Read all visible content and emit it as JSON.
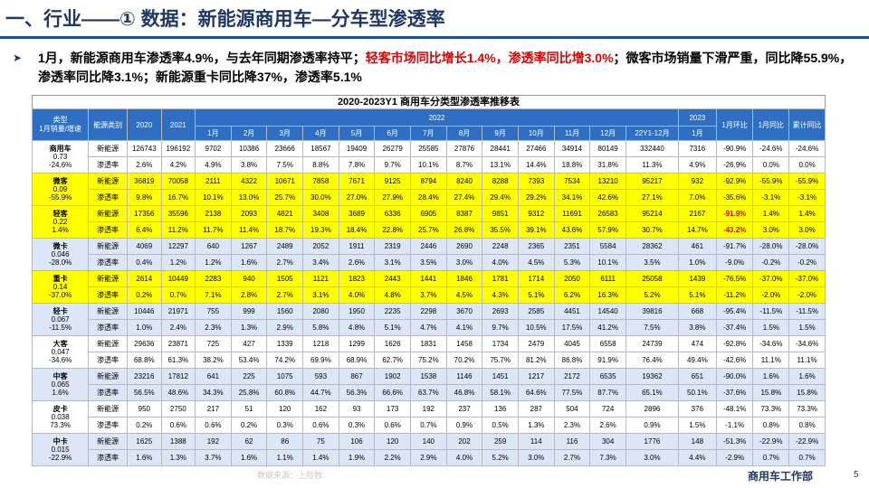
{
  "header": {
    "title": "一、行业——① 数据：新能源商用车—分车型渗透率"
  },
  "bullet": {
    "p1": "1月，新能源商用车渗透率4.9%，与去年同期渗透率持平；",
    "p2": "轻客市场同比增长1.4%，渗透率同比增3.0%",
    "p3": "；微客市场销量下滑严重，同比降55.9%，渗透率同比降3.1%；新能源重卡同比降37%，渗透率5.1%"
  },
  "table": {
    "title": "2020-2023Y1 商用车分类型渗透率推移表",
    "headers": {
      "type": "类型\n1月销量/增速",
      "energy": "能源类别",
      "y2020": "2020",
      "y2021": "2021",
      "y2022": "2022",
      "y2023": "2023",
      "mom": "1月环比",
      "yoy": "1月同比",
      "cum": "累计同比",
      "months": [
        "1月",
        "2月",
        "3月",
        "4月",
        "5月",
        "6月",
        "7月",
        "8月",
        "9月",
        "10月",
        "11月",
        "12月",
        "22Y1-12月"
      ],
      "m2023": "1月"
    },
    "groups": [
      {
        "name": "商用车",
        "val": "0.73",
        "growth": "-24.6%",
        "style": "",
        "nev": [
          "新能源",
          "126743",
          "196192",
          "9702",
          "10386",
          "23666",
          "18567",
          "19409",
          "26279",
          "25585",
          "27876",
          "28441",
          "27466",
          "34914",
          "80149",
          "332440",
          "7316",
          "-90.9%",
          "-24.6%",
          "-24.6%"
        ],
        "pen": [
          "渗透率",
          "2.6%",
          "4.2%",
          "4.9%",
          "3.8%",
          "7.5%",
          "8.8%",
          "7.8%",
          "9.7%",
          "10.1%",
          "8.7%",
          "13.1%",
          "14.4%",
          "18.8%",
          "31.8%",
          "11.3%",
          "4.9%",
          "-26.9%",
          "0.0%",
          "0.0%"
        ]
      },
      {
        "name": "微客",
        "val": "0.09",
        "growth": "-55.9%",
        "style": "yellow",
        "nev": [
          "新能源",
          "36819",
          "70058",
          "2111",
          "4322",
          "10671",
          "7858",
          "7671",
          "9125",
          "8794",
          "8240",
          "8288",
          "7393",
          "7534",
          "13210",
          "95217",
          "932",
          "-92.9%",
          "-55.9%",
          "-55.9%"
        ],
        "pen": [
          "渗透率",
          "9.8%",
          "16.7%",
          "10.1%",
          "13.0%",
          "25.7%",
          "30.0%",
          "27.0%",
          "27.9%",
          "28.4%",
          "27.4%",
          "29.4%",
          "29.2%",
          "34.1%",
          "42.6%",
          "27.1%",
          "7.0%",
          "-35.6%",
          "-3.1%",
          "-3.1%"
        ]
      },
      {
        "name": "轻客",
        "val": "0.22",
        "growth": "1.4%",
        "style": "yellow",
        "nev": [
          "新能源",
          "17356",
          "35596",
          "2138",
          "2093",
          "4821",
          "3408",
          "3689",
          "6336",
          "6905",
          "8387",
          "9851",
          "9312",
          "11691",
          "26583",
          "95214",
          "2167",
          "-91.9%",
          "1.4%",
          "1.4%"
        ],
        "pen": [
          "渗透率",
          "6.4%",
          "11.2%",
          "11.7%",
          "11.4%",
          "18.7%",
          "19.3%",
          "18.4%",
          "22.8%",
          "25.7%",
          "26.8%",
          "35.5%",
          "39.1%",
          "43.6%",
          "57.9%",
          "30.7%",
          "14.7%",
          "-43.2%",
          "3.0%",
          "3.0%"
        ]
      },
      {
        "name": "微卡",
        "val": "0.046",
        "growth": "-28.0%",
        "style": "",
        "nev": [
          "新能源",
          "4069",
          "12297",
          "640",
          "1267",
          "2489",
          "2052",
          "1911",
          "2319",
          "2446",
          "2690",
          "2248",
          "2365",
          "2351",
          "5584",
          "28362",
          "461",
          "-91.7%",
          "-28.0%",
          "-28.0%"
        ],
        "pen": [
          "渗透率",
          "0.4%",
          "1.2%",
          "1.2%",
          "1.6%",
          "2.7%",
          "3.4%",
          "2.6%",
          "3.1%",
          "3.5%",
          "3.0%",
          "4.0%",
          "4.5%",
          "5.3%",
          "10.1%",
          "3.5%",
          "1.0%",
          "-9.0%",
          "-0.2%",
          "-0.2%"
        ]
      },
      {
        "name": "重卡",
        "val": "0.14",
        "growth": "-37.0%",
        "style": "yellow",
        "nev": [
          "新能源",
          "2614",
          "10449",
          "2283",
          "940",
          "1505",
          "1121",
          "1823",
          "2443",
          "1441",
          "1846",
          "1781",
          "1714",
          "2050",
          "6111",
          "25058",
          "1439",
          "-76.5%",
          "-37.0%",
          "-37.0%"
        ],
        "pen": [
          "渗透率",
          "0.2%",
          "0.7%",
          "7.1%",
          "2.8%",
          "2.7%",
          "3.1%",
          "4.0%",
          "4.8%",
          "3.7%",
          "4.5%",
          "4.3%",
          "5.1%",
          "6.2%",
          "16.3%",
          "5.2%",
          "5.1%",
          "-11.2%",
          "-2.0%",
          "-2.0%"
        ]
      },
      {
        "name": "轻卡",
        "val": "0.067",
        "growth": "-11.5%",
        "style": "",
        "nev": [
          "新能源",
          "10446",
          "21971",
          "755",
          "999",
          "1560",
          "2080",
          "1950",
          "2235",
          "2298",
          "3670",
          "2693",
          "2585",
          "4451",
          "14540",
          "39816",
          "668",
          "-95.4%",
          "-11.5%",
          "-11.5%"
        ],
        "pen": [
          "渗透率",
          "1.0%",
          "2.4%",
          "2.3%",
          "1.3%",
          "2.9%",
          "5.8%",
          "4.8%",
          "5.1%",
          "4.7%",
          "4.1%",
          "9.7%",
          "10.5%",
          "17.5%",
          "41.2%",
          "7.5%",
          "3.8%",
          "-37.4%",
          "1.5%",
          "1.5%"
        ]
      },
      {
        "name": "大客",
        "val": "0.047",
        "growth": "-34.6%",
        "style": "",
        "nev": [
          "新能源",
          "29636",
          "23871",
          "725",
          "427",
          "1339",
          "1218",
          "1299",
          "1626",
          "1831",
          "1458",
          "1734",
          "2479",
          "4045",
          "6558",
          "24739",
          "474",
          "-92.8%",
          "-34.6%",
          "-34.6%"
        ],
        "pen": [
          "渗透率",
          "68.8%",
          "61.3%",
          "38.2%",
          "53.4%",
          "74.2%",
          "69.9%",
          "68.9%",
          "62.7%",
          "75.2%",
          "70.2%",
          "75.7%",
          "81.2%",
          "86.8%",
          "91.9%",
          "76.4%",
          "49.4%",
          "-42.6%",
          "11.1%",
          "11.1%"
        ]
      },
      {
        "name": "中客",
        "val": "0.065",
        "growth": "1.6%",
        "style": "",
        "nev": [
          "新能源",
          "23216",
          "17812",
          "641",
          "225",
          "1075",
          "593",
          "867",
          "1902",
          "1538",
          "1146",
          "1451",
          "1217",
          "2172",
          "6535",
          "19362",
          "651",
          "-90.0%",
          "1.6%",
          "1.6%"
        ],
        "pen": [
          "渗透率",
          "56.5%",
          "48.6%",
          "34.3%",
          "25.8%",
          "60.8%",
          "44.7%",
          "56.3%",
          "66.6%",
          "63.7%",
          "46.8%",
          "58.1%",
          "64.6%",
          "77.5%",
          "87.7%",
          "65.1%",
          "50.1%",
          "-37.6%",
          "15.8%",
          "15.8%"
        ]
      },
      {
        "name": "皮卡",
        "val": "0.038",
        "growth": "73.3%",
        "style": "",
        "nev": [
          "新能源",
          "950",
          "2750",
          "217",
          "51",
          "120",
          "162",
          "93",
          "173",
          "192",
          "237",
          "136",
          "287",
          "504",
          "724",
          "2896",
          "376",
          "-48.1%",
          "73.3%",
          "73.3%"
        ],
        "pen": [
          "渗透率",
          "0.2%",
          "0.6%",
          "0.6%",
          "0.2%",
          "0.3%",
          "0.6%",
          "0.3%",
          "0.6%",
          "0.7%",
          "0.9%",
          "0.5%",
          "1.3%",
          "2.3%",
          "2.6%",
          "0.9%",
          "1.5%",
          "-1.1%",
          "0.8%",
          "0.8%"
        ]
      },
      {
        "name": "中卡",
        "val": "0.015",
        "growth": "-22.9%",
        "style": "",
        "nev": [
          "新能源",
          "1625",
          "1388",
          "192",
          "62",
          "86",
          "75",
          "106",
          "120",
          "140",
          "202",
          "259",
          "114",
          "116",
          "304",
          "1776",
          "148",
          "-51.3%",
          "-22.9%",
          "-22.9%"
        ],
        "pen": [
          "渗透率",
          "1.6%",
          "1.3%",
          "3.7%",
          "1.6%",
          "1.1%",
          "1.4%",
          "1.9%",
          "2.2%",
          "2.9%",
          "4.0%",
          "5.2%",
          "3.0%",
          "2.7%",
          "7.3%",
          "3.0%",
          "4.4%",
          "-2.9%",
          "0.7%",
          "0.7%"
        ]
      }
    ]
  },
  "footer": {
    "source": "数据来源：上险数",
    "dept": "商用车工作部",
    "page": "5"
  },
  "colors": {
    "header_blue": "#2e6fc4",
    "highlight_yellow": "#ffff00",
    "title_navy": "#1f3864",
    "accent_red": "#e00000"
  }
}
